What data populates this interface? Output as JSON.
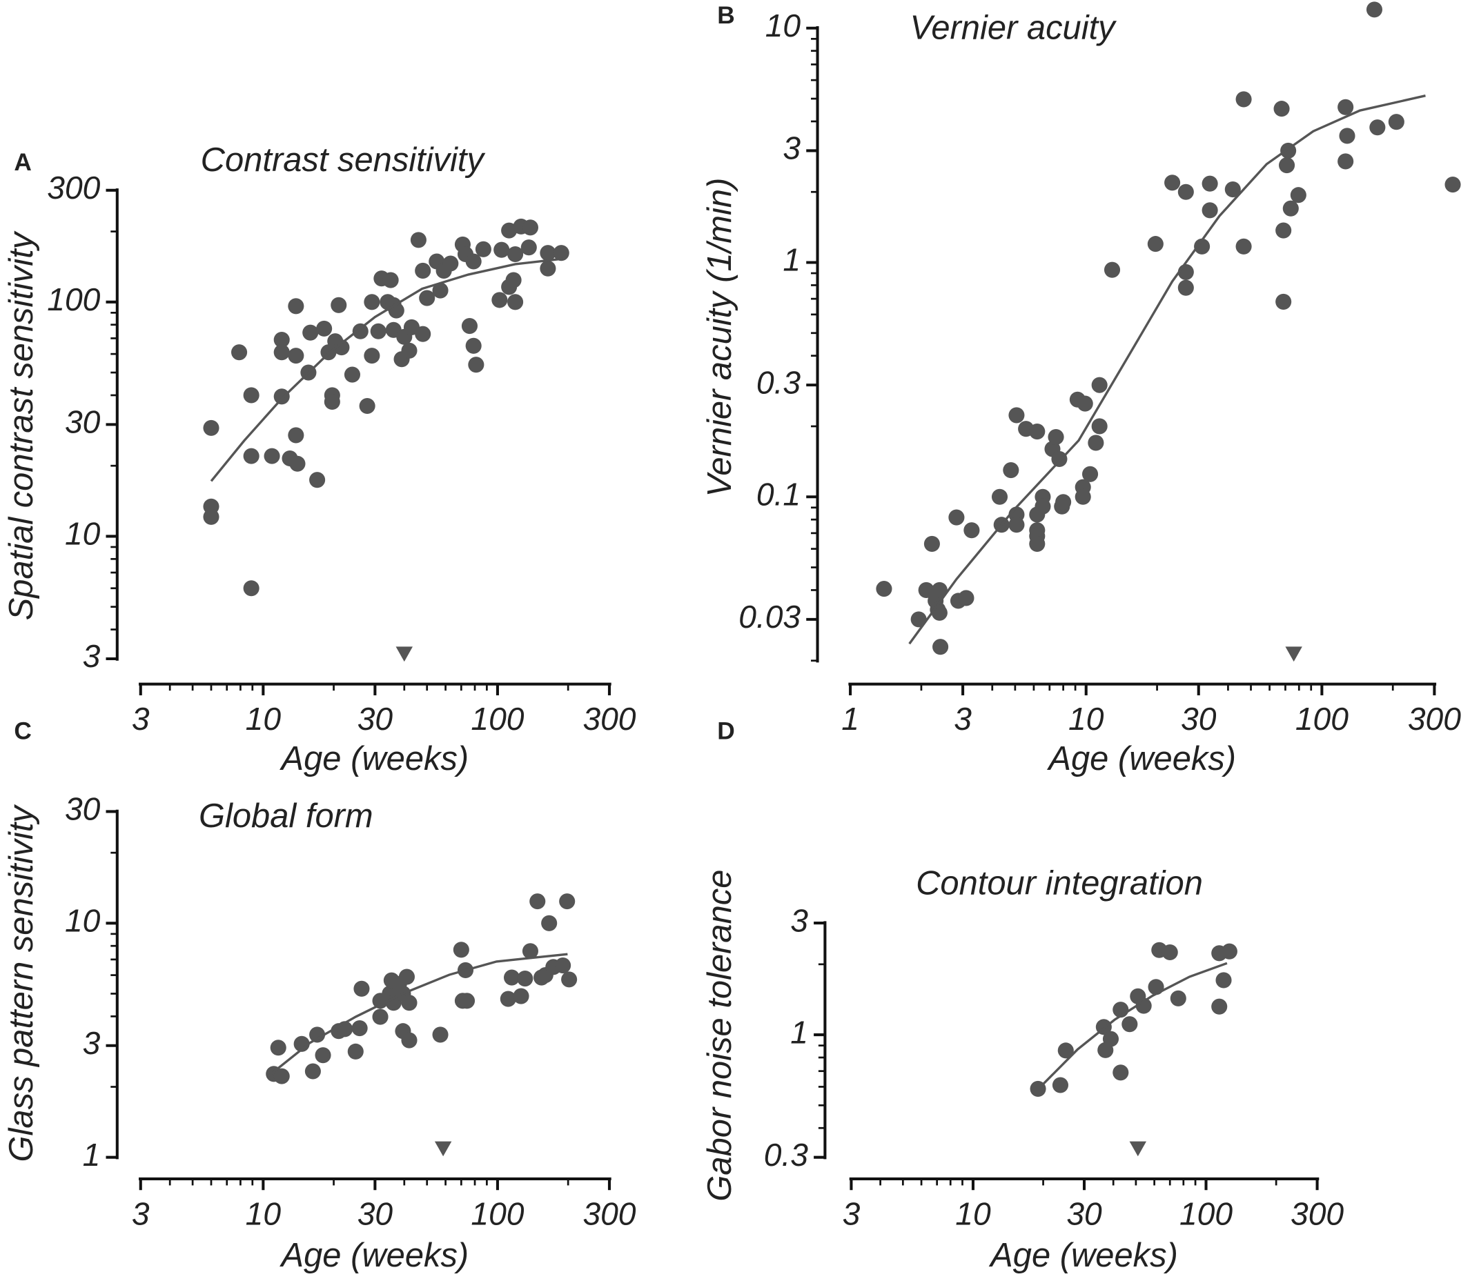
{
  "chart_data": [
    {
      "type": "scatter",
      "panel": "A",
      "title": "Contrast sensitivity",
      "xlabel": "Age (weeks)",
      "ylabel": "Spatial contrast sensitivity",
      "xscale": "log",
      "yscale": "log",
      "color": "#555555",
      "xlim": [
        3,
        300
      ],
      "ylim": [
        3,
        300
      ],
      "xticks": [
        3,
        10,
        30,
        100,
        300
      ],
      "yticks": [
        3,
        10,
        30,
        100,
        300
      ],
      "xminor": [
        4,
        5,
        6,
        7,
        8,
        9,
        20,
        40,
        50,
        60,
        70,
        80,
        90,
        200
      ],
      "yminor": [
        4,
        5,
        6,
        7,
        8,
        9,
        20,
        40,
        50,
        60,
        70,
        80,
        90,
        200
      ],
      "x": [
        6,
        6,
        6,
        8.9,
        7.9,
        8.9,
        8.9,
        10.9,
        13,
        14,
        17,
        12,
        12,
        12,
        13.8,
        13.8,
        13.8,
        15.6,
        15.9,
        18.2,
        19,
        19.7,
        19.7,
        20.3,
        21,
        21.6,
        24,
        26,
        27.8,
        29.1,
        29.1,
        31,
        32,
        34,
        35,
        36,
        37,
        36,
        39,
        40,
        42,
        43,
        46,
        48,
        48,
        50,
        55,
        57,
        59,
        63,
        71,
        73,
        76,
        79,
        81,
        79,
        87,
        104,
        102,
        112,
        117,
        119,
        112,
        119,
        126,
        136,
        138,
        164,
        164,
        187
      ],
      "values": [
        29,
        13.4,
        12.1,
        6,
        61,
        40,
        22,
        22,
        21.5,
        20.4,
        17.4,
        39.5,
        69,
        61,
        59,
        96,
        27,
        50,
        74,
        77,
        61,
        40,
        37.5,
        68,
        97,
        64,
        49,
        75,
        36,
        59,
        100,
        75,
        126,
        100,
        124,
        97,
        92,
        76,
        57,
        71,
        62,
        78,
        184,
        73,
        136,
        104,
        149,
        112,
        136,
        146,
        176,
        160,
        79,
        65,
        54,
        149,
        168,
        167,
        102,
        116,
        124,
        100,
        202,
        160,
        210,
        171,
        208,
        139,
        162,
        162
      ],
      "fit": {
        "x": [
          6,
          8.3,
          12,
          19,
          30,
          47.7,
          75,
          119,
          190
        ],
        "values": [
          17.2,
          25.6,
          38.7,
          60.3,
          86.3,
          114,
          131,
          145,
          153
        ]
      },
      "arrow_x": 40
    },
    {
      "type": "scatter",
      "panel": "B",
      "title": "Vernier acuity",
      "xlabel": "Age (weeks)",
      "ylabel": "Vernier acuity (1/min)",
      "xscale": "log",
      "yscale": "log",
      "color": "#555555",
      "xlim": [
        1,
        300
      ],
      "ylim": [
        0.02,
        10
      ],
      "xticks": [
        1,
        3,
        10,
        30,
        100,
        300
      ],
      "yticks": [
        0.03,
        0.1,
        0.3,
        1,
        3,
        10
      ],
      "xminor": [
        2,
        4,
        5,
        6,
        7,
        8,
        9,
        20,
        40,
        50,
        60,
        70,
        80,
        90,
        200
      ],
      "yminor": [
        0.02,
        0.04,
        0.05,
        0.06,
        0.07,
        0.08,
        0.09,
        0.2,
        0.4,
        0.5,
        0.6,
        0.7,
        0.8,
        0.9,
        2,
        4,
        5,
        6,
        7,
        8,
        9
      ],
      "x": [
        1.39,
        1.95,
        2.1,
        2.22,
        2.3,
        2.35,
        2.39,
        2.39,
        2.41,
        2.87,
        3.1,
        2.82,
        3.27,
        4.3,
        4.38,
        4.8,
        5.07,
        5.07,
        5.07,
        5.56,
        6.2,
        6.2,
        6.2,
        6.2,
        6.2,
        6.55,
        6.55,
        7.2,
        7.45,
        7.7,
        7.9,
        8,
        9.2,
        9.9,
        9.7,
        9.7,
        10.4,
        11,
        11.4,
        11.4,
        12.9,
        19.7,
        23.2,
        26.5,
        26.5,
        26.5,
        31,
        33.5,
        33.5,
        41.9,
        46.6,
        46.6,
        67.5,
        68.7,
        68.7,
        71,
        72,
        73.8,
        79.5,
        126,
        128,
        126,
        167,
        172,
        207,
        359
      ],
      "values": [
        0.0405,
        0.03,
        0.04,
        0.063,
        0.036,
        0.033,
        0.04,
        0.032,
        0.0229,
        0.036,
        0.037,
        0.0817,
        0.072,
        0.1,
        0.076,
        0.13,
        0.223,
        0.084,
        0.076,
        0.195,
        0.19,
        0.084,
        0.072,
        0.068,
        0.063,
        0.1,
        0.091,
        0.16,
        0.18,
        0.145,
        0.091,
        0.095,
        0.26,
        0.25,
        0.11,
        0.1,
        0.125,
        0.17,
        0.2,
        0.3,
        0.93,
        1.2,
        2.19,
        2,
        0.91,
        0.78,
        1.17,
        2.17,
        1.67,
        2.05,
        1.17,
        4.97,
        4.53,
        1.37,
        0.68,
        2.6,
        3,
        1.7,
        1.94,
        4.6,
        3.47,
        2.7,
        12,
        3.77,
        3.98,
        2.15
      ],
      "fit": {
        "x": [
          1.78,
          2.82,
          4.89,
          9.3,
          14.7,
          23.2,
          36.8,
          58.3,
          91.8,
          145,
          275
        ],
        "values": [
          0.0236,
          0.0445,
          0.087,
          0.174,
          0.38,
          0.83,
          1.58,
          2.63,
          3.63,
          4.45,
          5.15
        ]
      },
      "arrow_x": 76
    },
    {
      "type": "scatter",
      "panel": "C",
      "title": "Global form",
      "xlabel": "Age (weeks)",
      "ylabel": "Glass pattern sensitivity",
      "xscale": "log",
      "yscale": "log",
      "color": "#555555",
      "xlim": [
        3,
        300
      ],
      "ylim": [
        1,
        30
      ],
      "xticks": [
        3,
        10,
        30,
        100,
        300
      ],
      "yticks": [
        1,
        3,
        10,
        30
      ],
      "xminor": [
        4,
        5,
        6,
        7,
        8,
        9,
        20,
        40,
        50,
        60,
        70,
        80,
        90,
        200
      ],
      "yminor": [
        2,
        4,
        5,
        6,
        7,
        8,
        9,
        20
      ],
      "x": [
        11.1,
        12,
        11.6,
        14.6,
        16.3,
        17,
        18,
        21,
        22.3,
        24.8,
        26.3,
        25.8,
        31.6,
        31.6,
        34.7,
        35.3,
        36,
        38,
        39.5,
        39.5,
        41,
        42,
        42,
        57,
        70,
        71,
        73,
        74,
        111,
        115,
        126,
        131,
        138,
        148,
        154,
        160,
        166,
        173,
        190,
        198,
        202
      ],
      "values": [
        2.27,
        2.22,
        2.94,
        3.05,
        2.33,
        3.34,
        2.73,
        3.46,
        3.53,
        2.83,
        5.25,
        3.56,
        3.98,
        4.66,
        5,
        5.7,
        4.57,
        5.5,
        5,
        3.46,
        5.9,
        3.16,
        4.57,
        3.34,
        7.7,
        4.66,
        6.3,
        4.66,
        4.75,
        5.86,
        4.88,
        5.8,
        7.6,
        12.4,
        5.86,
        6,
        10,
        6.5,
        6.6,
        12.4,
        5.75
      ],
      "fit": {
        "x": [
          10.5,
          15.8,
          24.8,
          39.4,
          62.3,
          99,
          199
        ],
        "values": [
          2.22,
          3.08,
          3.98,
          5,
          6.02,
          6.86,
          7.38
        ]
      },
      "arrow_x": 58.6
    },
    {
      "type": "scatter",
      "panel": "D",
      "title": "Contour integration",
      "xlabel": "Age (weeks)",
      "ylabel": "Gabor noise tolerance",
      "xscale": "log",
      "yscale": "log",
      "color": "#555555",
      "xlim": [
        3,
        300
      ],
      "ylim": [
        0.3,
        3
      ],
      "xticks": [
        3,
        10,
        30,
        100,
        300
      ],
      "yticks": [
        0.3,
        1,
        3
      ],
      "xminor": [
        4,
        5,
        6,
        7,
        8,
        9,
        20,
        40,
        50,
        60,
        70,
        80,
        90,
        200
      ],
      "yminor": [
        0.4,
        0.5,
        0.6,
        0.7,
        0.8,
        0.9,
        2
      ],
      "x": [
        19,
        23.7,
        25,
        36.4,
        37,
        39,
        43,
        43,
        47,
        51,
        54,
        61,
        63,
        70,
        76,
        114,
        119,
        114,
        126
      ],
      "values": [
        0.588,
        0.61,
        0.857,
        1.08,
        0.86,
        0.96,
        1.28,
        0.69,
        1.11,
        1.46,
        1.33,
        1.6,
        2.3,
        2.25,
        1.43,
        1.32,
        1.71,
        2.23,
        2.27
      ],
      "fit": {
        "x": [
          19.8,
          28.1,
          40.5,
          59,
          85,
          123
        ],
        "values": [
          0.61,
          0.866,
          1.16,
          1.47,
          1.77,
          2.02
        ]
      },
      "arrow_x": 51
    }
  ]
}
